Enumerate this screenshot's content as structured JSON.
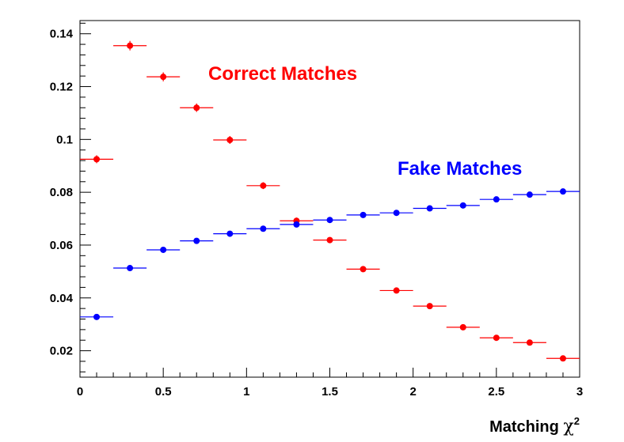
{
  "chart_data": {
    "type": "scatter",
    "xlabel": "Matching χ²",
    "xlabel_main": "Matching ",
    "xlabel_symbol": "χ",
    "xlabel_sup": "2",
    "xlim": [
      0,
      3
    ],
    "ylim": [
      0.01,
      0.145
    ],
    "x_ticks": [
      0,
      0.5,
      1,
      1.5,
      2,
      2.5,
      3
    ],
    "x_tick_labels": [
      "0",
      "0.5",
      "1",
      "1.5",
      "2",
      "2.5",
      "3"
    ],
    "y_ticks": [
      0.02,
      0.04,
      0.06,
      0.08,
      0.1,
      0.12,
      0.14
    ],
    "y_tick_labels": [
      "0.02",
      "0.04",
      "0.06",
      "0.08",
      "0.1",
      "0.12",
      "0.14"
    ],
    "bin_width": 0.2,
    "grid": false,
    "series": [
      {
        "name": "Correct Matches",
        "color": "#ff0000",
        "x": [
          0.1,
          0.3,
          0.5,
          0.7,
          0.9,
          1.1,
          1.3,
          1.5,
          1.7,
          1.9,
          2.1,
          2.3,
          2.5,
          2.7,
          2.9
        ],
        "y": [
          0.0925,
          0.1355,
          0.1237,
          0.112,
          0.0998,
          0.0825,
          0.0692,
          0.0619,
          0.0509,
          0.0428,
          0.0369,
          0.0289,
          0.0249,
          0.0231,
          0.0171
        ],
        "yerr": [
          0.0015,
          0.0018,
          0.0017,
          0.0016,
          0.0015,
          0.0013,
          0.0012,
          0.0011,
          0.001,
          0.0009,
          0.0008,
          0.0007,
          0.0007,
          0.0006,
          0.0005
        ]
      },
      {
        "name": "Fake Matches",
        "color": "#0000ff",
        "x": [
          0.1,
          0.3,
          0.5,
          0.7,
          0.9,
          1.1,
          1.3,
          1.5,
          1.7,
          1.9,
          2.1,
          2.3,
          2.5,
          2.7,
          2.9
        ],
        "y": [
          0.0328,
          0.0513,
          0.0582,
          0.0616,
          0.0643,
          0.0662,
          0.0678,
          0.0695,
          0.0714,
          0.0722,
          0.0739,
          0.075,
          0.0773,
          0.0791,
          0.0803
        ],
        "yerr": [
          0.0003,
          0.0003,
          0.0003,
          0.0003,
          0.0003,
          0.0003,
          0.0003,
          0.0003,
          0.0003,
          0.0003,
          0.0003,
          0.0003,
          0.0003,
          0.0003,
          0.0003
        ]
      }
    ]
  }
}
